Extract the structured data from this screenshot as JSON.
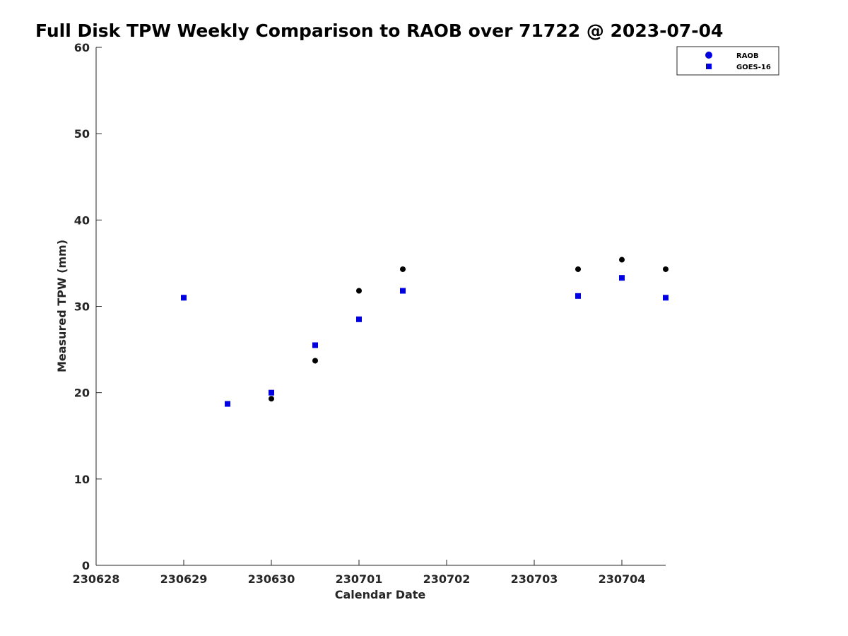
{
  "chart_data": {
    "type": "scatter",
    "title": "Full Disk TPW Weekly Comparison to RAOB over 71722 @ 2023-07-04",
    "xlabel": "Calendar Date",
    "ylabel": "Measured TPW (mm)",
    "xlim": [
      230628,
      230704.5
    ],
    "ylim": [
      0,
      60
    ],
    "xticks": [
      "230628",
      "230629",
      "230630",
      "230701",
      "230702",
      "230703",
      "230704"
    ],
    "yticks": [
      "0",
      "10",
      "20",
      "30",
      "40",
      "50",
      "60"
    ],
    "grid": false,
    "legend_position": "top-right",
    "series": [
      {
        "name": "RAOB",
        "marker": "circle",
        "color": "#000000",
        "legend_color": "#0000e0",
        "points": [
          {
            "x": "2023-06-29 00:00",
            "y": 31.0
          },
          {
            "x": "2023-06-29 12:00",
            "y": 18.7
          },
          {
            "x": "2023-06-30 00:00",
            "y": 19.3
          },
          {
            "x": "2023-06-30 12:00",
            "y": 23.7
          },
          {
            "x": "2023-07-01 00:00",
            "y": 31.8
          },
          {
            "x": "2023-07-01 12:00",
            "y": 34.3
          },
          {
            "x": "2023-07-03 12:00",
            "y": 34.3
          },
          {
            "x": "2023-07-04 00:00",
            "y": 35.4
          },
          {
            "x": "2023-07-04 12:00",
            "y": 34.3
          }
        ]
      },
      {
        "name": "GOES-16",
        "marker": "square",
        "color": "#0000e0",
        "points": [
          {
            "x": "2023-06-29 00:00",
            "y": 31.0
          },
          {
            "x": "2023-06-29 12:00",
            "y": 18.7
          },
          {
            "x": "2023-06-30 00:00",
            "y": 20.0
          },
          {
            "x": "2023-06-30 12:00",
            "y": 25.5
          },
          {
            "x": "2023-07-01 00:00",
            "y": 28.5
          },
          {
            "x": "2023-07-01 12:00",
            "y": 31.8
          },
          {
            "x": "2023-07-03 12:00",
            "y": 31.2
          },
          {
            "x": "2023-07-04 00:00",
            "y": 33.3
          },
          {
            "x": "2023-07-04 12:00",
            "y": 31.0
          }
        ]
      }
    ]
  }
}
